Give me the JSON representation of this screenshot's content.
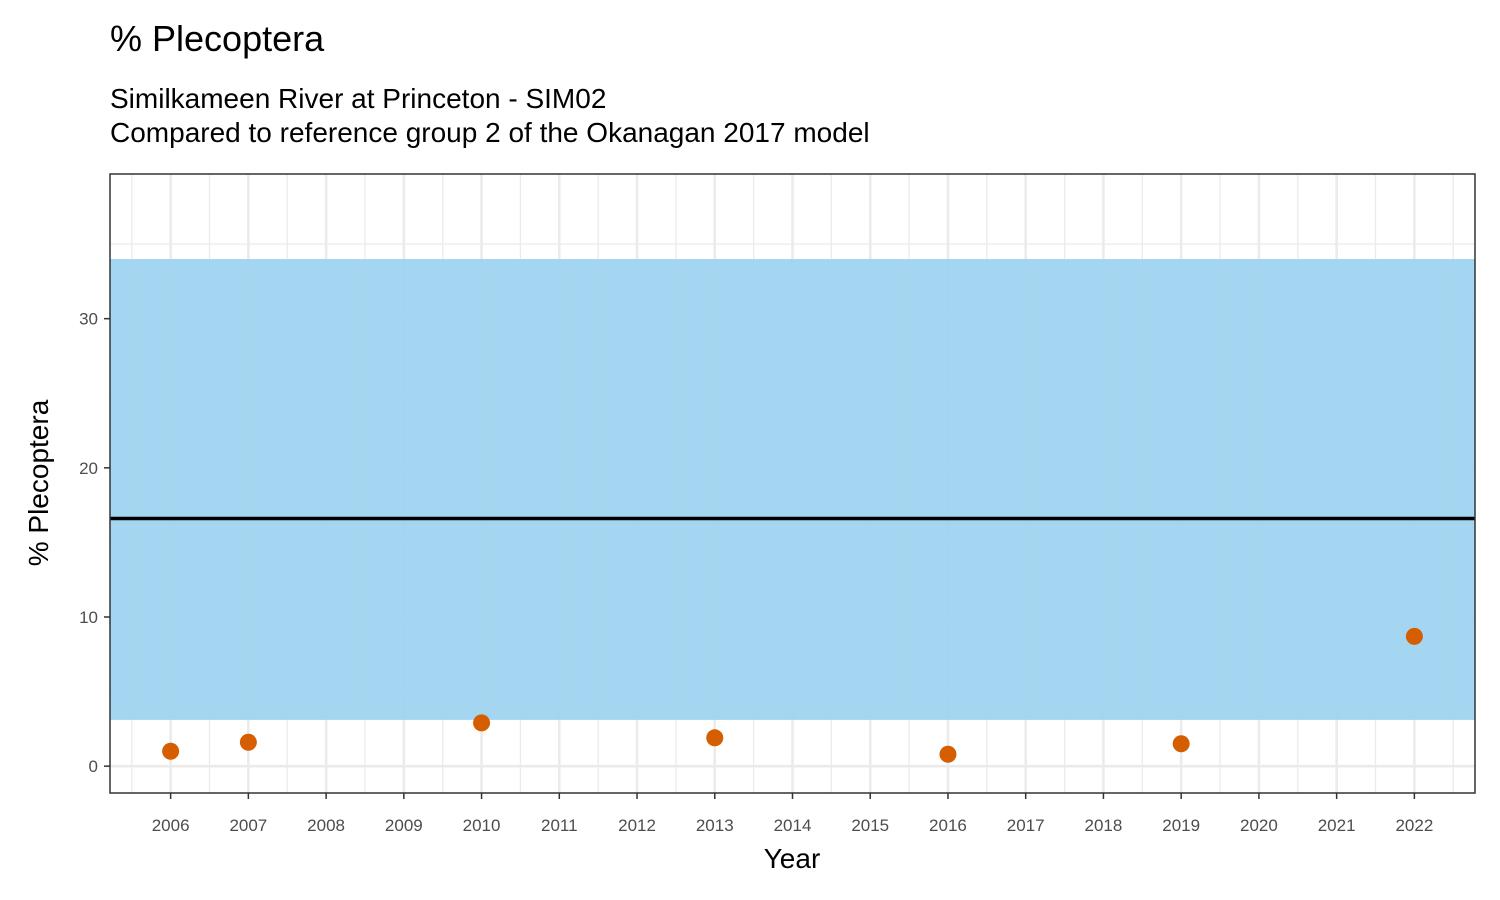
{
  "chart_data": {
    "type": "scatter",
    "title": "% Plecoptera",
    "subtitle_lines": [
      "Similkameen River at Princeton - SIM02",
      "Compared to reference group 2 of the Okanagan 2017 model"
    ],
    "xlabel": "Year",
    "ylabel": "% Plecoptera",
    "x_ticks": [
      2006,
      2007,
      2008,
      2009,
      2010,
      2011,
      2012,
      2013,
      2014,
      2015,
      2016,
      2017,
      2018,
      2019,
      2020,
      2021,
      2022
    ],
    "y_ticks": [
      0,
      10,
      20,
      30
    ],
    "xlim": [
      2005.22,
      2022.78
    ],
    "ylim": [
      -1.8,
      39.7
    ],
    "grid": true,
    "reference_band": {
      "lower": 3.1,
      "upper": 34.0,
      "color": "#9dd3f0"
    },
    "reference_line": {
      "value": 16.6,
      "color": "#000000"
    },
    "points": [
      {
        "x": 2006,
        "y": 1.0
      },
      {
        "x": 2007,
        "y": 1.6
      },
      {
        "x": 2010,
        "y": 2.9
      },
      {
        "x": 2013,
        "y": 1.9
      },
      {
        "x": 2016,
        "y": 0.8
      },
      {
        "x": 2019,
        "y": 1.5
      },
      {
        "x": 2022,
        "y": 8.7
      }
    ],
    "point_color": "#d55e00"
  }
}
